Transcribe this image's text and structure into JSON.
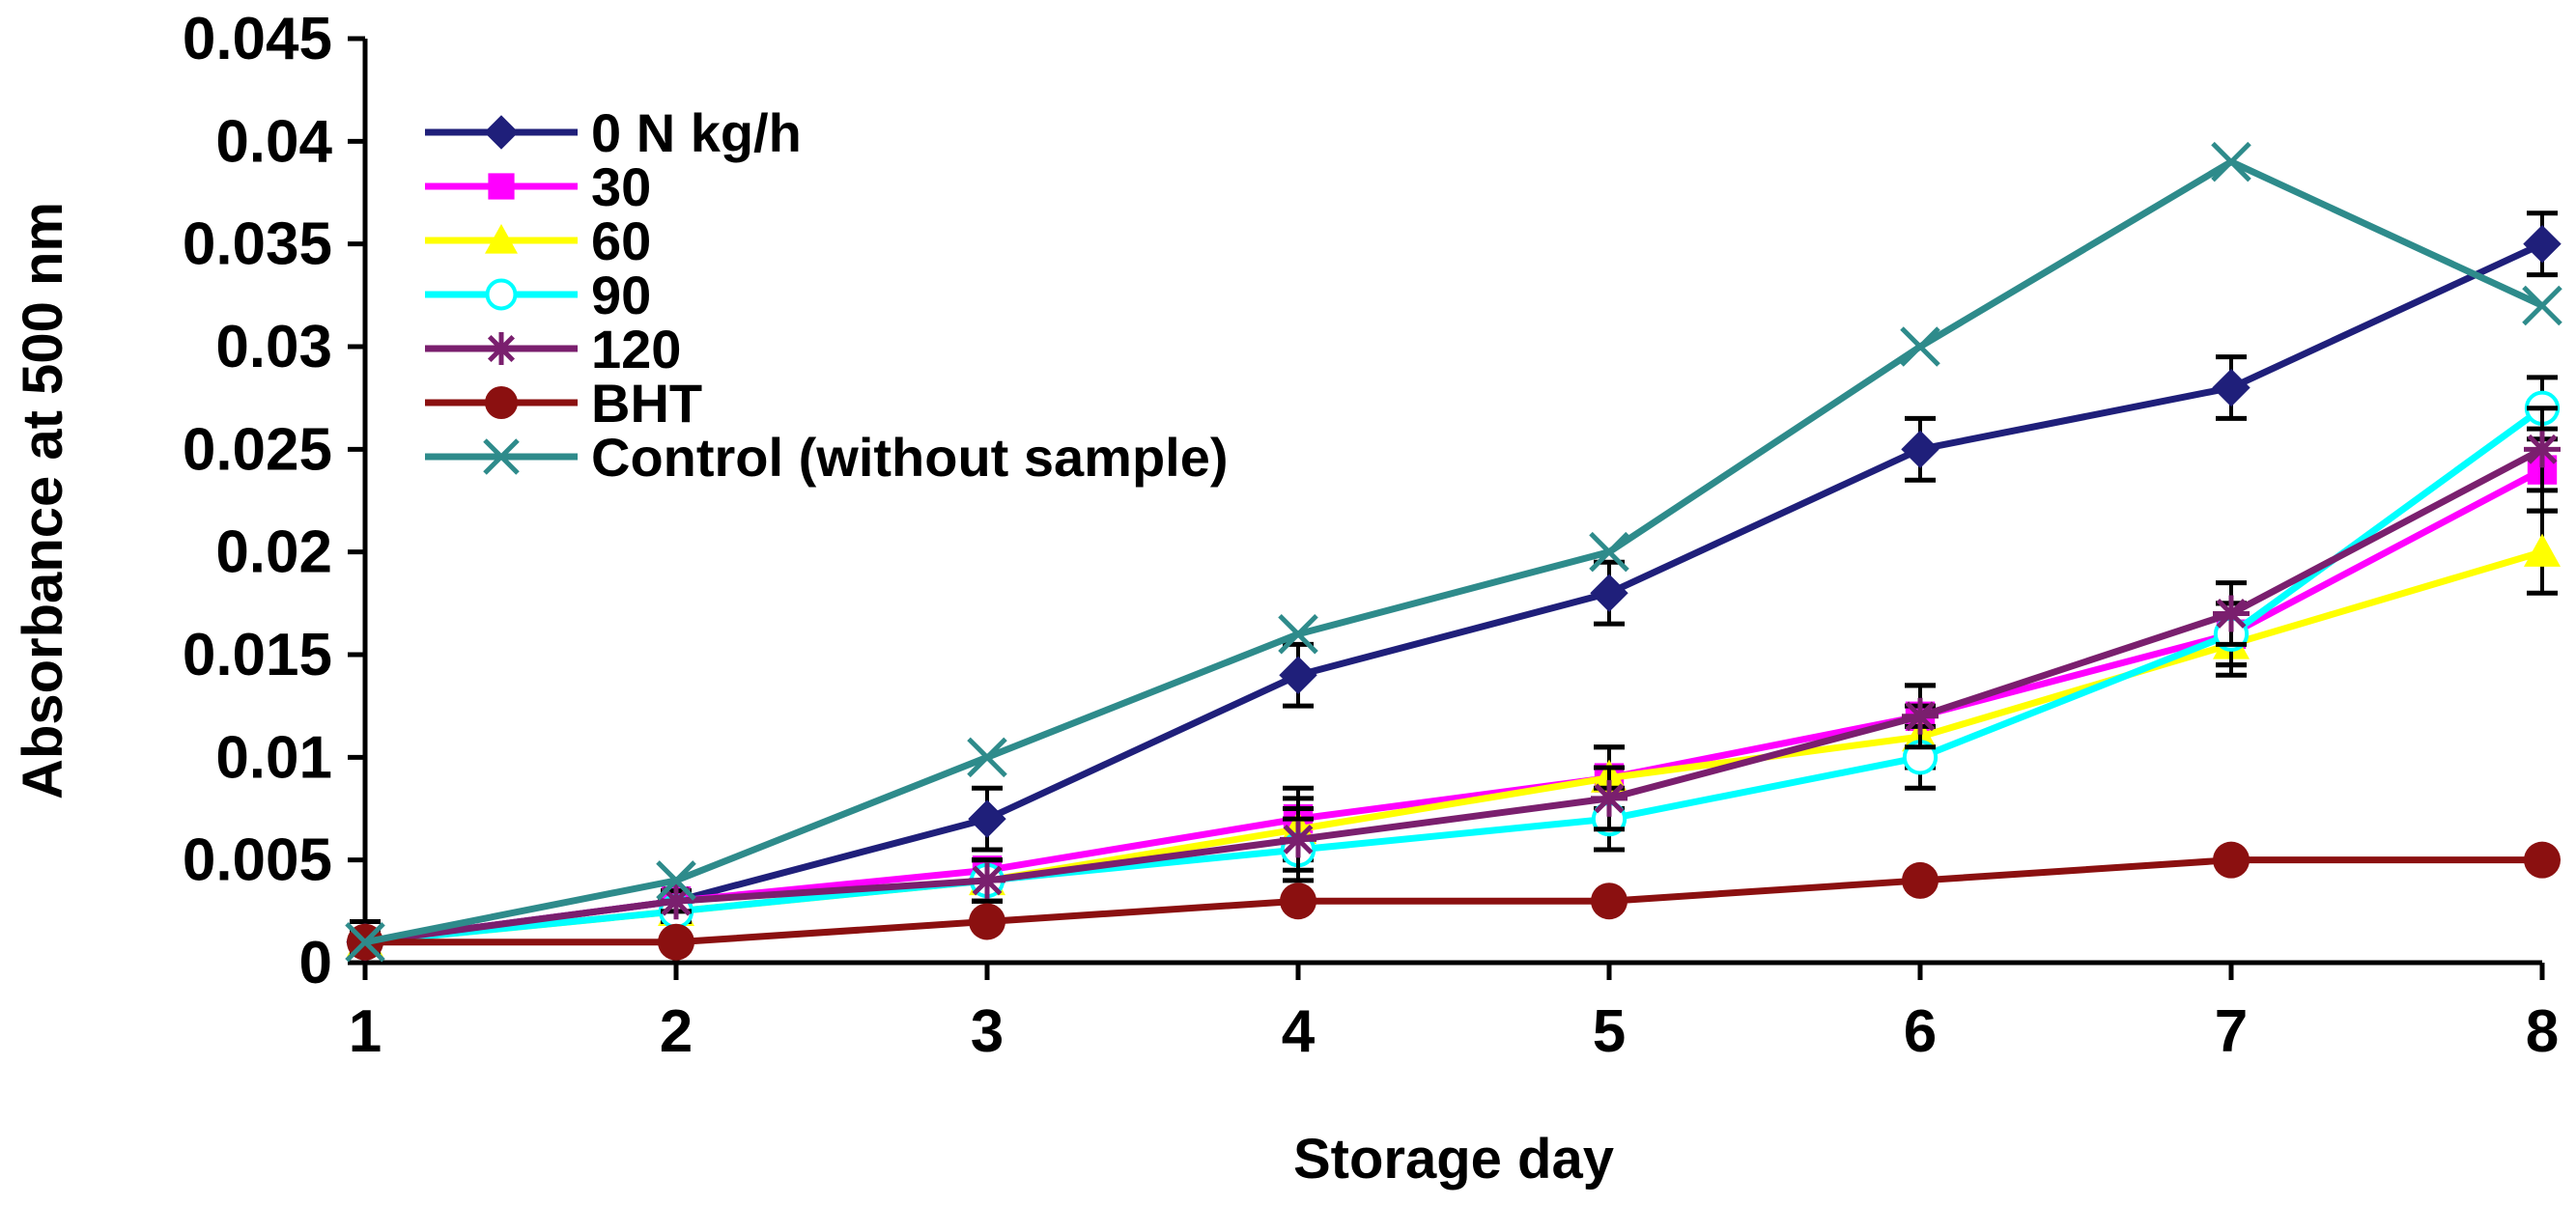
{
  "chart_data": {
    "type": "line",
    "title": "",
    "xlabel": "Storage day",
    "ylabel": "Absorbance at 500 nm",
    "x": [
      1,
      2,
      3,
      4,
      5,
      6,
      7,
      8
    ],
    "xticks": [
      "1",
      "2",
      "3",
      "4",
      "5",
      "6",
      "7",
      "8"
    ],
    "ylim": [
      0,
      0.045
    ],
    "yticks": [
      "0",
      "0.005",
      "0.01",
      "0.015",
      "0.02",
      "0.025",
      "0.03",
      "0.035",
      "0.04",
      "0.045"
    ],
    "grid": false,
    "legend_position": "top-left",
    "series": [
      {
        "name": "0 N kg/h",
        "color": "#1f1f7a",
        "marker": "diamond",
        "values": [
          0.001,
          0.003,
          0.007,
          0.014,
          0.018,
          0.025,
          0.028,
          0.035
        ],
        "errors": [
          0.001,
          0.0005,
          0.0015,
          0.0015,
          0.0015,
          0.0015,
          0.0015,
          0.0015
        ]
      },
      {
        "name": "30",
        "color": "#ff00ff",
        "marker": "square",
        "values": [
          0.001,
          0.003,
          0.0045,
          0.007,
          0.009,
          0.012,
          0.016,
          0.024
        ],
        "errors": [
          0.0005,
          0.0005,
          0.0005,
          0.0015,
          0.0015,
          0.0015,
          0.0015,
          0.002
        ]
      },
      {
        "name": "60",
        "color": "#ffff00",
        "marker": "triangle",
        "values": [
          0.001,
          0.0025,
          0.004,
          0.0065,
          0.009,
          0.011,
          0.0155,
          0.02
        ],
        "errors": [
          0.0005,
          0.0005,
          0.001,
          0.0015,
          0.0015,
          0.0015,
          0.0015,
          0.002
        ]
      },
      {
        "name": "90",
        "color": "#00ffff",
        "marker": "circle-open",
        "values": [
          0.001,
          0.0025,
          0.004,
          0.0055,
          0.007,
          0.01,
          0.016,
          0.027
        ],
        "errors": [
          0.0005,
          0.0005,
          0.001,
          0.0015,
          0.0015,
          0.0015,
          0.0015,
          0.0015
        ]
      },
      {
        "name": "120",
        "color": "#7a1f6e",
        "marker": "star",
        "values": [
          0.001,
          0.003,
          0.004,
          0.006,
          0.008,
          0.012,
          0.017,
          0.025
        ],
        "errors": [
          0.0005,
          0.0005,
          0.001,
          0.0015,
          0.0015,
          0.0015,
          0.0015,
          0.002
        ]
      },
      {
        "name": "BHT",
        "color": "#8b1010",
        "marker": "circle",
        "values": [
          0.001,
          0.001,
          0.002,
          0.003,
          0.003,
          0.004,
          0.005,
          0.005
        ],
        "errors": [
          0,
          0,
          0,
          0,
          0,
          0,
          0,
          0
        ]
      },
      {
        "name": "Control (without sample)",
        "color": "#2e8b8b",
        "marker": "x",
        "values": [
          0.001,
          0.004,
          0.01,
          0.016,
          0.02,
          0.03,
          0.039,
          0.032
        ],
        "errors": [
          0,
          0,
          0,
          0,
          0,
          0,
          0,
          0
        ]
      }
    ]
  }
}
